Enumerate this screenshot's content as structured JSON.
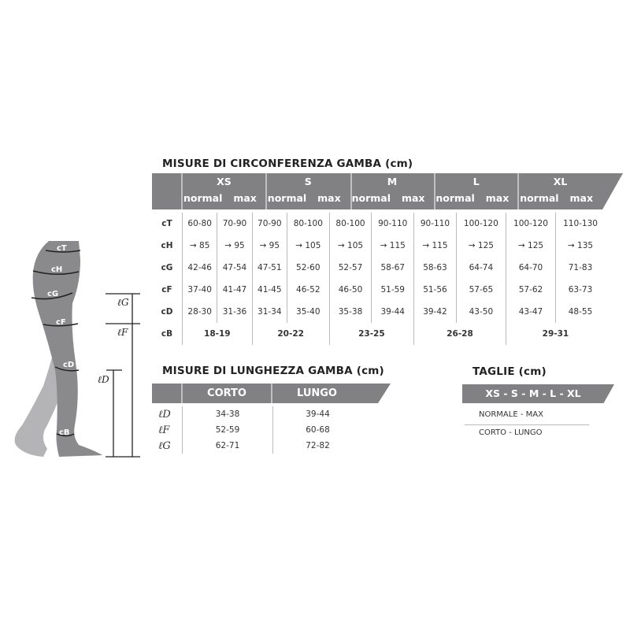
{
  "circumference": {
    "title": "MISURE DI CIRCONFERENZA GAMBA (cm)",
    "sizes": [
      "XS",
      "S",
      "M",
      "L",
      "XL"
    ],
    "sub_headers": [
      "normal",
      "max"
    ],
    "rows": [
      {
        "label": "cT",
        "values": [
          "60-80",
          "70-90",
          "70-90",
          "80-100",
          "80-100",
          "90-110",
          "90-110",
          "100-120",
          "100-120",
          "110-130"
        ]
      },
      {
        "label": "cH",
        "values": [
          "→ 85",
          "→ 95",
          "→ 95",
          "→ 105",
          "→ 105",
          "→ 115",
          "→ 115",
          "→ 125",
          "→ 125",
          "→ 135"
        ]
      },
      {
        "label": "cG",
        "values": [
          "42-46",
          "47-54",
          "47-51",
          "52-60",
          "52-57",
          "58-67",
          "58-63",
          "64-74",
          "64-70",
          "71-83"
        ]
      },
      {
        "label": "cF",
        "values": [
          "37-40",
          "41-47",
          "41-45",
          "46-52",
          "46-50",
          "51-59",
          "51-56",
          "57-65",
          "57-62",
          "63-73"
        ]
      },
      {
        "label": "cD",
        "values": [
          "28-30",
          "31-36",
          "31-34",
          "35-40",
          "35-38",
          "39-44",
          "39-42",
          "43-50",
          "43-47",
          "48-55"
        ]
      }
    ],
    "cB": {
      "label": "cB",
      "values": [
        "18-19",
        "20-22",
        "23-25",
        "26-28",
        "29-31"
      ]
    }
  },
  "length": {
    "title": "MISURE DI LUNGHEZZA GAMBA (cm)",
    "headers": [
      "CORTO",
      "LUNGO"
    ],
    "rows": [
      {
        "label": "ℓD",
        "values": [
          "34-38",
          "39-44"
        ]
      },
      {
        "label": "ℓF",
        "values": [
          "52-59",
          "60-68"
        ]
      },
      {
        "label": "ℓG",
        "values": [
          "62-71",
          "72-82"
        ]
      }
    ]
  },
  "taglie": {
    "title": "TAGLIE (cm)",
    "bar": "XS - S - M - L - XL",
    "lines": [
      "NORMALE - MAX",
      "CORTO - LUNGO"
    ]
  },
  "figure": {
    "circ_labels": [
      "cT",
      "cH",
      "cG",
      "cF",
      "cD",
      "cB"
    ],
    "len_labels": [
      "ℓG",
      "ℓF",
      "ℓD"
    ]
  },
  "colors": {
    "header": "#818184",
    "leg_front": "#8a8a8c",
    "leg_back": "#b4b4b6"
  }
}
